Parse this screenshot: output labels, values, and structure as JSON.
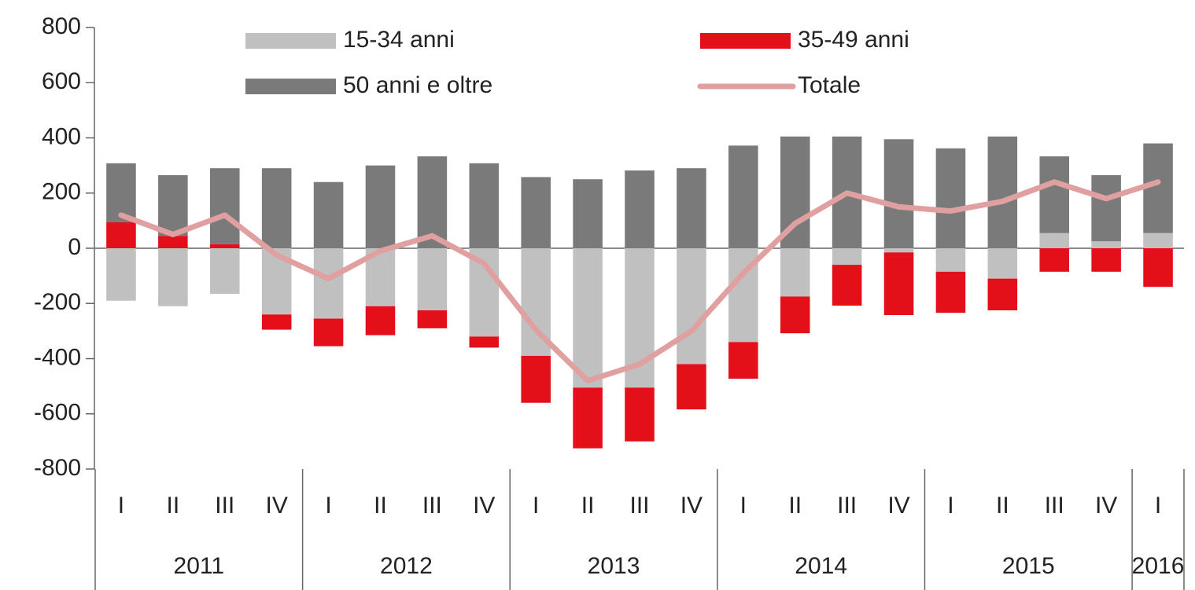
{
  "chart_data": {
    "type": "stacked_bar_line",
    "categories": [
      "I",
      "II",
      "III",
      "IV",
      "I",
      "II",
      "III",
      "IV",
      "I",
      "II",
      "III",
      "IV",
      "I",
      "II",
      "III",
      "IV",
      "I",
      "II",
      "III",
      "IV",
      "I"
    ],
    "years": [
      "2011",
      "2012",
      "2013",
      "2014",
      "2015",
      "2016"
    ],
    "series": [
      {
        "name": "15-34 anni",
        "color": "#c0c0c0",
        "kind": "bar",
        "values": [
          -190,
          -210,
          -165,
          -240,
          -255,
          -210,
          -225,
          -320,
          -390,
          -505,
          -505,
          -420,
          -340,
          -175,
          -60,
          -15,
          -85,
          -110,
          55,
          25,
          55
        ]
      },
      {
        "name": "35-49 anni",
        "color": "#e3101a",
        "kind": "bar",
        "values": [
          94,
          45,
          15,
          -55,
          -100,
          -105,
          -65,
          -40,
          -170,
          -220,
          -195,
          -164,
          -133,
          -133,
          -148,
          -227,
          -149,
          -115,
          -85,
          -85,
          -140
        ]
      },
      {
        "name": "50 anni e oltre",
        "color": "#7a7a7a",
        "kind": "bar",
        "values": [
          214,
          220,
          275,
          290,
          240,
          300,
          333,
          308,
          258,
          250,
          282,
          290,
          372,
          405,
          405,
          395,
          362,
          405,
          278,
          240,
          325
        ]
      },
      {
        "name": "Totale",
        "color": "#e0a0a0",
        "kind": "line",
        "values": [
          120,
          50,
          120,
          -25,
          -110,
          -10,
          45,
          -55,
          -296,
          -480,
          -420,
          -300,
          -90,
          90,
          200,
          150,
          135,
          170,
          240,
          180,
          240
        ]
      }
    ],
    "ylim": [
      -800,
      800
    ],
    "yticks": [
      -800,
      -600,
      -400,
      -200,
      0,
      200,
      400,
      600,
      800
    ],
    "legend": "top"
  }
}
